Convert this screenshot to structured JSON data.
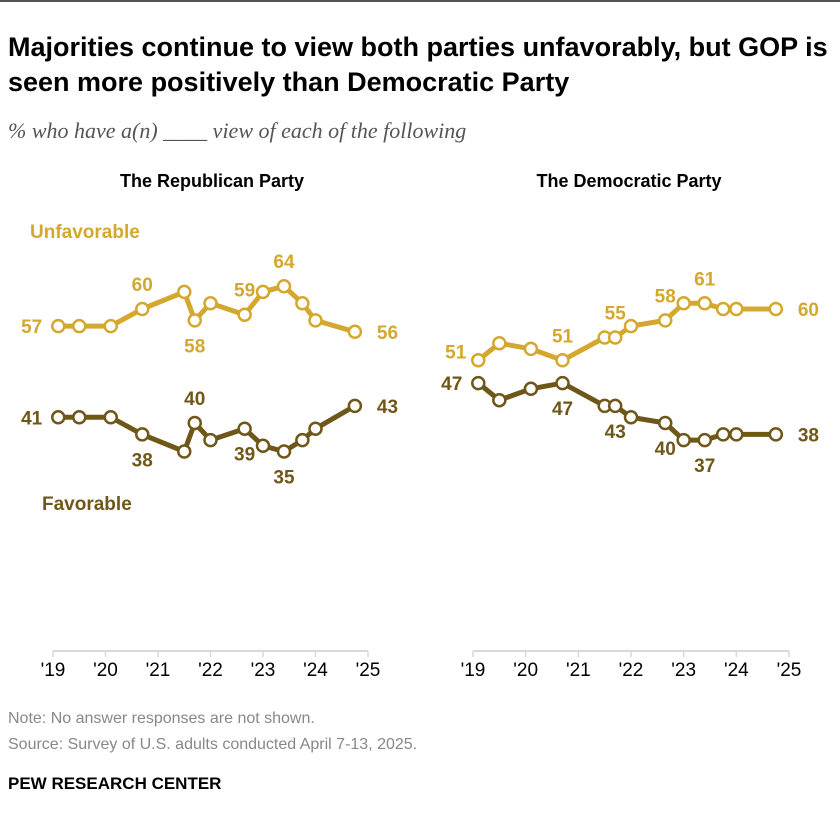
{
  "title": "Majorities continue to view both parties unfavorably, but GOP is seen more positively than Democratic Party",
  "subtitle": "% who have a(n) ____ view of each of the following",
  "note": "Note: No answer responses are not shown.",
  "source": "Source: Survey of U.S. adults conducted April 7-13, 2025.",
  "brand": "PEW RESEARCH CENTER",
  "colors": {
    "unfavorable": "#d4a82e",
    "favorable": "#6e5719",
    "axis": "#d9d9d9"
  },
  "chart_data": [
    {
      "type": "line",
      "title": "The Republican Party",
      "x_tick_labels": [
        "'19",
        "'20",
        "'21",
        "'22",
        "'23",
        "'24",
        "'25"
      ],
      "xlim": [
        2019,
        2025
      ],
      "ylim": [
        0,
        100
      ],
      "grid": false,
      "x": [
        2019.1,
        2019.5,
        2020.1,
        2020.7,
        2021.5,
        2021.7,
        2022.0,
        2022.65,
        2023.0,
        2023.4,
        2023.75,
        2024.0,
        2024.75
      ],
      "series": [
        {
          "name": "Unfavorable",
          "key": "unfavorable",
          "values": [
            57,
            57,
            57,
            60,
            63,
            58,
            61,
            59,
            63,
            64,
            61,
            58,
            56
          ],
          "labels": [
            {
              "i": 0,
              "pos": "left"
            },
            {
              "i": 3,
              "pos": "above"
            },
            {
              "i": 5,
              "pos": "below"
            },
            {
              "i": 7,
              "pos": "above"
            },
            {
              "i": 9,
              "pos": "above"
            },
            {
              "i": 12,
              "pos": "right"
            }
          ]
        },
        {
          "name": "Favorable",
          "key": "favorable",
          "values": [
            41,
            41,
            41,
            38,
            35,
            40,
            37,
            39,
            36,
            35,
            37,
            39,
            43
          ],
          "labels": [
            {
              "i": 0,
              "pos": "left"
            },
            {
              "i": 3,
              "pos": "below"
            },
            {
              "i": 5,
              "pos": "above"
            },
            {
              "i": 7,
              "pos": "below"
            },
            {
              "i": 9,
              "pos": "below"
            },
            {
              "i": 12,
              "pos": "right"
            }
          ]
        }
      ]
    },
    {
      "type": "line",
      "title": "The Democratic Party",
      "x_tick_labels": [
        "'19",
        "'20",
        "'21",
        "'22",
        "'23",
        "'24",
        "'25"
      ],
      "xlim": [
        2019,
        2025
      ],
      "ylim": [
        0,
        100
      ],
      "grid": false,
      "x": [
        2019.1,
        2019.5,
        2020.1,
        2020.7,
        2021.5,
        2021.7,
        2022.0,
        2022.65,
        2023.0,
        2023.4,
        2023.75,
        2024.0,
        2024.75
      ],
      "series": [
        {
          "name": "Unfavorable",
          "key": "unfavorable",
          "values": [
            51,
            54,
            53,
            51,
            55,
            55,
            57,
            58,
            61,
            61,
            60,
            60,
            60
          ],
          "labels": [
            {
              "i": 0,
              "pos": "upleft"
            },
            {
              "i": 3,
              "pos": "above"
            },
            {
              "i": 5,
              "pos": "above"
            },
            {
              "i": 7,
              "pos": "above"
            },
            {
              "i": 9,
              "pos": "above"
            },
            {
              "i": 12,
              "pos": "right"
            }
          ]
        },
        {
          "name": "Favorable",
          "key": "favorable",
          "values": [
            47,
            44,
            46,
            47,
            43,
            43,
            41,
            40,
            37,
            37,
            38,
            38,
            38
          ],
          "labels": [
            {
              "i": 0,
              "pos": "left"
            },
            {
              "i": 3,
              "pos": "below"
            },
            {
              "i": 5,
              "pos": "below"
            },
            {
              "i": 7,
              "pos": "below"
            },
            {
              "i": 9,
              "pos": "below"
            },
            {
              "i": 12,
              "pos": "right"
            }
          ]
        }
      ]
    }
  ]
}
